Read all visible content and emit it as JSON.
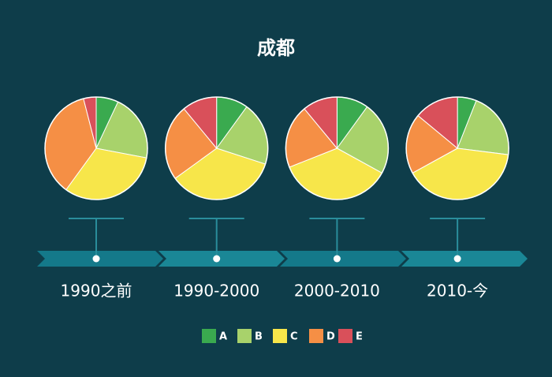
{
  "chart_data": {
    "type": "pie",
    "title": "成都",
    "categories": [
      "A",
      "B",
      "C",
      "D",
      "E"
    ],
    "colors": [
      "#3aaa4f",
      "#a8d26b",
      "#f7e64a",
      "#f58f45",
      "#d9505a"
    ],
    "series": [
      {
        "name": "1990之前",
        "values": [
          7,
          21,
          32,
          36,
          4
        ]
      },
      {
        "name": "1990-2000",
        "values": [
          10,
          20,
          35,
          24,
          11
        ]
      },
      {
        "name": "2000-2010",
        "values": [
          10,
          23,
          36,
          20,
          11
        ]
      },
      {
        "name": "2010-今",
        "values": [
          6,
          21,
          40,
          19,
          14
        ]
      }
    ]
  }
}
